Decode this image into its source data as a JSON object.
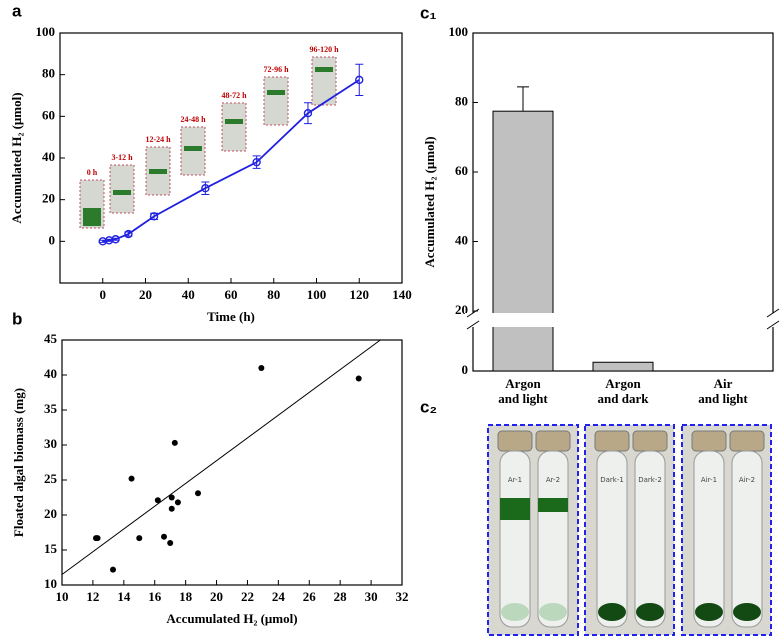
{
  "panels": {
    "a": "a",
    "b": "b",
    "c1": "c₁",
    "c2": "c₂"
  },
  "photo_labels": [
    "Ar-1",
    "Ar-2",
    "Dark-1",
    "Dark-2",
    "Air-1",
    "Air-2"
  ],
  "chart_data": [
    {
      "type": "line",
      "xlabel": "Time (h)",
      "ylabel": "Accumulated H₂ (μmol)",
      "x": [
        0,
        3,
        6,
        12,
        24,
        48,
        72,
        96,
        120
      ],
      "values": [
        0,
        0.5,
        1,
        3.5,
        12,
        25.5,
        38,
        61.5,
        77.5
      ],
      "errors": [
        0.5,
        0.5,
        0.5,
        1,
        1.5,
        3,
        3,
        5,
        7.5
      ],
      "color": "#2020e0",
      "xlim": [
        -20,
        140
      ],
      "xticks": [
        0,
        20,
        40,
        60,
        80,
        100,
        120,
        140
      ],
      "ylim": [
        -20,
        100
      ],
      "yticks": [
        0,
        20,
        40,
        60,
        80,
        100
      ],
      "image_labels": [
        "0 h",
        "3-12 h",
        "12-24 h",
        "24-48 h",
        "48-72 h",
        "72-96 h",
        "96-120 h"
      ]
    },
    {
      "type": "scatter",
      "xlabel": "Accumulated H₂ (μmol)",
      "ylabel": "Floated algal biomass (mg)",
      "x": [
        12.2,
        12.3,
        13.3,
        14.5,
        15,
        16.2,
        16.6,
        17,
        17.1,
        17.1,
        17.3,
        17.5,
        18.8,
        22.9,
        29.2
      ],
      "values": [
        16.7,
        16.7,
        12.2,
        25.2,
        16.7,
        22.1,
        16.9,
        16,
        20.9,
        22.5,
        30.3,
        21.8,
        23.1,
        41,
        39.5
      ],
      "color": "#000000",
      "fit": {
        "x": [
          10,
          30.6
        ],
        "y": [
          11.5,
          45
        ]
      },
      "xlim": [
        10,
        32
      ],
      "xticks": [
        10,
        12,
        14,
        16,
        18,
        20,
        22,
        24,
        26,
        28,
        30,
        32
      ],
      "ylim": [
        10,
        45
      ],
      "yticks": [
        10,
        15,
        20,
        25,
        30,
        35,
        40,
        45
      ]
    },
    {
      "type": "bar",
      "ylabel": "Accumulated H₂ (μmol)",
      "categories": [
        [
          "Argon",
          "and light"
        ],
        [
          "Argon",
          "and dark"
        ],
        [
          "Air",
          "and light"
        ]
      ],
      "values": [
        77.5,
        2.5,
        0
      ],
      "errors": [
        7,
        0,
        0
      ],
      "color": "#c0c0c0",
      "ylim": [
        0,
        100
      ],
      "ybreak": [
        12,
        20
      ],
      "yticks": [
        0,
        20,
        40,
        60,
        80,
        100
      ]
    }
  ]
}
